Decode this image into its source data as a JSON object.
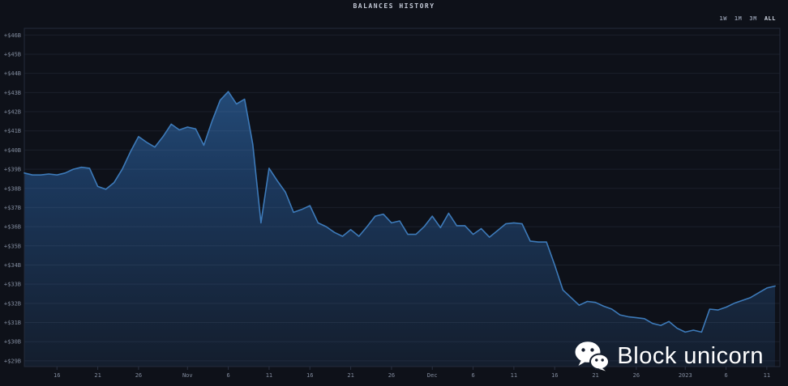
{
  "header": {
    "title": "BALANCES HISTORY",
    "range_buttons": [
      {
        "label": "1W",
        "active": false
      },
      {
        "label": "1M",
        "active": false
      },
      {
        "label": "3M",
        "active": false
      },
      {
        "label": "ALL",
        "active": true
      }
    ]
  },
  "watermark": {
    "icon": "wechat-icon",
    "text": "Block unicorn"
  },
  "colors": {
    "background": "#0e1119",
    "grid": "rgba(150,165,198,0.10)",
    "plot_border": "#242b3a",
    "axis_text": "#808a9c",
    "tick_mark": "#2a3142",
    "line": "#3d7ab9",
    "area_top": "#2a5a8f",
    "area_mid": "#1c3a60",
    "area_bottom": "#141e2e",
    "watermark_text": "#ffffff",
    "icon_eye": "#141d2d"
  },
  "chart_data": {
    "type": "area",
    "title": "BALANCES HISTORY",
    "ylabel": "",
    "xlabel": "",
    "unit": "USD billions",
    "grid": "horizontal",
    "legend": false,
    "ylim": [
      28.7,
      46.35
    ],
    "xlim_days": [
      0,
      92.6
    ],
    "x_unit": "days since Oct 12 (2022)",
    "y_ticks": [
      {
        "label": "+$46B",
        "value": 46
      },
      {
        "label": "+$45B",
        "value": 45
      },
      {
        "label": "+$44B",
        "value": 44
      },
      {
        "label": "+$43B",
        "value": 43
      },
      {
        "label": "+$42B",
        "value": 42
      },
      {
        "label": "+$41B",
        "value": 41
      },
      {
        "label": "+$40B",
        "value": 40
      },
      {
        "label": "+$39B",
        "value": 39
      },
      {
        "label": "+$38B",
        "value": 38
      },
      {
        "label": "+$37B",
        "value": 37
      },
      {
        "label": "+$36B",
        "value": 36
      },
      {
        "label": "+$35B",
        "value": 35
      },
      {
        "label": "+$34B",
        "value": 34
      },
      {
        "label": "+$33B",
        "value": 33
      },
      {
        "label": "+$32B",
        "value": 32
      },
      {
        "label": "+$31B",
        "value": 31
      },
      {
        "label": "+$30B",
        "value": 30
      },
      {
        "label": "+$29B",
        "value": 29
      }
    ],
    "x_ticks": [
      {
        "label": "16",
        "day": 4
      },
      {
        "label": "21",
        "day": 9
      },
      {
        "label": "26",
        "day": 14
      },
      {
        "label": "Nov",
        "day": 20
      },
      {
        "label": "6",
        "day": 25
      },
      {
        "label": "11",
        "day": 30
      },
      {
        "label": "16",
        "day": 35
      },
      {
        "label": "21",
        "day": 40
      },
      {
        "label": "26",
        "day": 45
      },
      {
        "label": "Dec",
        "day": 50
      },
      {
        "label": "6",
        "day": 55
      },
      {
        "label": "11",
        "day": 60
      },
      {
        "label": "16",
        "day": 65
      },
      {
        "label": "21",
        "day": 70
      },
      {
        "label": "26",
        "day": 75
      },
      {
        "label": "2023",
        "day": 81
      },
      {
        "label": "6",
        "day": 86
      },
      {
        "label": "11",
        "day": 91
      }
    ],
    "series": [
      {
        "name": "balance",
        "points": [
          [
            0,
            38.8
          ],
          [
            1,
            38.7
          ],
          [
            2,
            38.7
          ],
          [
            3,
            38.75
          ],
          [
            4,
            38.7
          ],
          [
            5,
            38.8
          ],
          [
            6,
            39.0
          ],
          [
            7,
            39.1
          ],
          [
            8,
            39.05
          ],
          [
            9,
            38.1
          ],
          [
            10,
            37.95
          ],
          [
            11,
            38.3
          ],
          [
            12,
            39.0
          ],
          [
            13,
            39.9
          ],
          [
            14,
            40.7
          ],
          [
            15,
            40.4
          ],
          [
            16,
            40.15
          ],
          [
            17,
            40.7
          ],
          [
            18,
            41.35
          ],
          [
            19,
            41.05
          ],
          [
            20,
            41.2
          ],
          [
            21,
            41.1
          ],
          [
            22,
            40.25
          ],
          [
            23,
            41.5
          ],
          [
            24,
            42.6
          ],
          [
            25,
            43.05
          ],
          [
            26,
            42.4
          ],
          [
            27,
            42.65
          ],
          [
            28,
            40.3
          ],
          [
            29,
            36.2
          ],
          [
            30,
            39.05
          ],
          [
            31,
            38.4
          ],
          [
            32,
            37.8
          ],
          [
            33,
            36.75
          ],
          [
            34,
            36.9
          ],
          [
            35,
            37.1
          ],
          [
            36,
            36.2
          ],
          [
            37,
            36.0
          ],
          [
            38,
            35.7
          ],
          [
            39,
            35.5
          ],
          [
            40,
            35.85
          ],
          [
            41,
            35.5
          ],
          [
            42,
            36.0
          ],
          [
            43,
            36.55
          ],
          [
            44,
            36.65
          ],
          [
            45,
            36.2
          ],
          [
            46,
            36.3
          ],
          [
            47,
            35.6
          ],
          [
            48,
            35.6
          ],
          [
            49,
            36.0
          ],
          [
            50,
            36.55
          ],
          [
            51,
            35.95
          ],
          [
            52,
            36.7
          ],
          [
            53,
            36.05
          ],
          [
            54,
            36.05
          ],
          [
            55,
            35.6
          ],
          [
            56,
            35.9
          ],
          [
            57,
            35.45
          ],
          [
            58,
            35.8
          ],
          [
            59,
            36.15
          ],
          [
            60,
            36.2
          ],
          [
            61,
            36.15
          ],
          [
            62,
            35.25
          ],
          [
            63,
            35.2
          ],
          [
            64,
            35.2
          ],
          [
            65,
            34.0
          ],
          [
            66,
            32.7
          ],
          [
            67,
            32.3
          ],
          [
            68,
            31.9
          ],
          [
            69,
            32.1
          ],
          [
            70,
            32.05
          ],
          [
            71,
            31.85
          ],
          [
            72,
            31.7
          ],
          [
            73,
            31.4
          ],
          [
            74,
            31.3
          ],
          [
            75,
            31.25
          ],
          [
            76,
            31.2
          ],
          [
            77,
            30.95
          ],
          [
            78,
            30.85
          ],
          [
            79,
            31.05
          ],
          [
            80,
            30.7
          ],
          [
            81,
            30.5
          ],
          [
            82,
            30.6
          ],
          [
            83,
            30.5
          ],
          [
            84,
            31.7
          ],
          [
            85,
            31.65
          ],
          [
            86,
            31.8
          ],
          [
            87,
            32.0
          ],
          [
            88,
            32.15
          ],
          [
            89,
            32.3
          ],
          [
            90,
            32.55
          ],
          [
            91,
            32.8
          ],
          [
            92,
            32.9
          ]
        ]
      }
    ]
  }
}
